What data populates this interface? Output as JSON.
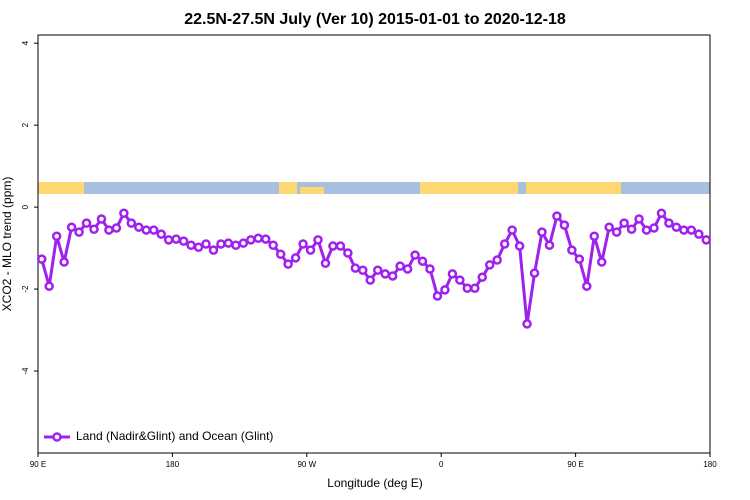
{
  "chart_data": {
    "type": "line",
    "title": "22.5N-27.5N July (Ver 10)   2015-01-01 to 2020-12-18",
    "xlabel": "Longitude (deg E)",
    "ylabel": "XCO2 - MLO trend (ppm)",
    "xlim": [
      90,
      540
    ],
    "ylim": [
      -6,
      4.2
    ],
    "xticks": [
      {
        "value": 90,
        "label": "90 E"
      },
      180,
      {
        "value": 270,
        "label": "90 W"
      },
      {
        "value": 360,
        "label": "0"
      },
      {
        "value": 450,
        "label": "90 E"
      },
      {
        "value": 540,
        "label": "180"
      }
    ],
    "yticks": [
      4,
      2,
      0,
      -2,
      -4
    ],
    "legend": "bottomleft",
    "x": [
      92.5,
      97.5,
      102.5,
      107.5,
      112.5,
      117.5,
      122.5,
      127.5,
      132.5,
      137.5,
      142.5,
      147.5,
      152.5,
      157.5,
      162.5,
      167.5,
      172.5,
      177.5,
      182.5,
      187.5,
      192.5,
      197.5,
      202.5,
      207.5,
      212.5,
      217.5,
      222.5,
      227.5,
      232.5,
      237.5,
      242.5,
      247.5,
      252.5,
      257.5,
      262.5,
      267.5,
      272.5,
      277.5,
      282.5,
      287.5,
      292.5,
      297.5,
      302.5,
      307.5,
      312.5,
      317.5,
      322.5,
      327.5,
      332.5,
      337.5,
      342.5,
      347.5,
      352.5,
      357.5,
      362.5,
      367.5,
      372.5,
      377.5,
      382.5,
      387.5,
      392.5,
      397.5,
      402.5,
      407.5,
      412.5,
      417.5,
      422.5,
      427.5,
      432.5,
      437.5,
      442.5,
      447.5,
      452.5,
      457.5,
      462.5,
      467.5,
      472.5,
      477.5,
      482.5,
      487.5,
      492.5,
      497.5,
      502.5,
      507.5,
      512.5,
      517.5,
      522.5,
      527.5,
      532.5,
      537.5
    ],
    "series": [
      {
        "name": "Land (Nadir&Glint) and Ocean (Glint)",
        "color": "#a020f0",
        "values": [
          -1.27,
          -1.93,
          -0.71,
          -1.34,
          -0.49,
          -0.61,
          -0.39,
          -0.54,
          -0.29,
          -0.56,
          -0.51,
          -0.15,
          -0.39,
          -0.49,
          -0.56,
          -0.56,
          -0.66,
          -0.8,
          -0.78,
          -0.83,
          -0.93,
          -0.98,
          -0.9,
          -1.05,
          -0.9,
          -0.88,
          -0.93,
          -0.88,
          -0.8,
          -0.76,
          -0.78,
          -0.93,
          -1.15,
          -1.39,
          -1.24,
          -0.9,
          -1.05,
          -0.8,
          -1.37,
          -0.95,
          -0.95,
          -1.12,
          -1.49,
          -1.54,
          -1.78,
          -1.54,
          -1.63,
          -1.68,
          -1.44,
          -1.51,
          -1.17,
          -1.32,
          -1.51,
          -2.17,
          -2.02,
          -1.63,
          -1.78,
          -1.98,
          -1.98,
          -1.71,
          -1.41,
          -1.29,
          -0.9,
          -0.56,
          -0.95,
          -2.85,
          -1.61,
          -0.61,
          -0.93,
          -0.22,
          -0.44,
          -1.05,
          -1.27,
          -1.93,
          -0.71,
          -1.34,
          -0.49,
          -0.61,
          -0.39,
          -0.54,
          -0.29,
          -0.56,
          -0.51,
          -0.15,
          -0.39,
          -0.49,
          -0.56,
          -0.56,
          -0.66,
          -0.8
        ]
      }
    ]
  }
}
